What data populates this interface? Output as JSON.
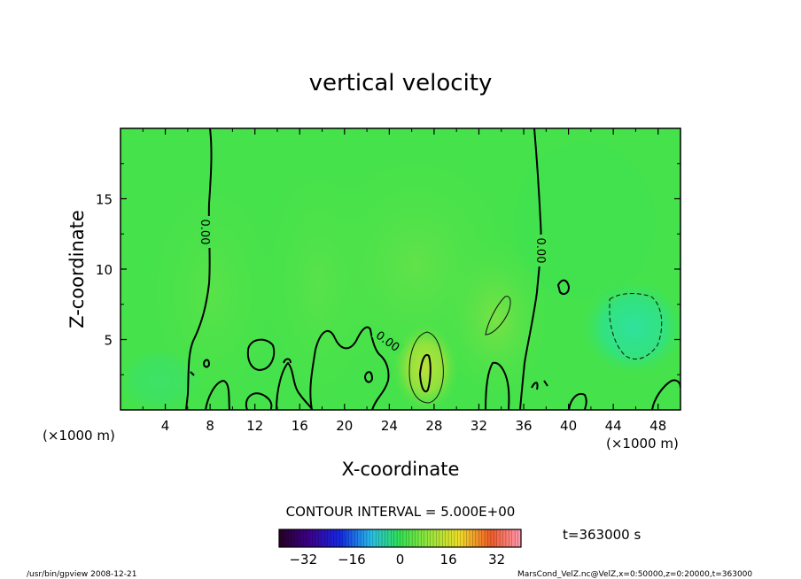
{
  "chart_data": {
    "type": "heatmap",
    "title": "vertical velocity",
    "xlabel": "X-coordinate",
    "ylabel": "Z-coordinate",
    "x_unit_left": "(×1000 m)",
    "x_unit_right": "(×1000 m)",
    "xlim": [
      0,
      50
    ],
    "ylim": [
      0,
      20
    ],
    "x_ticks": [
      "4",
      "8",
      "12",
      "16",
      "20",
      "24",
      "28",
      "32",
      "36",
      "40",
      "44",
      "48"
    ],
    "y_ticks": [
      "5",
      "10",
      "15"
    ],
    "contour_interval_text": "CONTOUR INTERVAL = 5.000E+00",
    "contour_labels": [
      "0.00",
      "0.00",
      "0.00"
    ],
    "colorbar": {
      "min": -40,
      "max": 40,
      "ticks": [
        "−32",
        "−16",
        "0",
        "16",
        "32"
      ]
    },
    "time_label": "t=363000 s",
    "features": [
      {
        "kind": "max",
        "x": 27,
        "z": 3,
        "value": 12
      },
      {
        "kind": "max",
        "x": 33.5,
        "z": 6,
        "value": 6
      },
      {
        "kind": "min",
        "x": 46,
        "z": 5.5,
        "value": -6
      }
    ]
  },
  "footer": {
    "left": "/usr/bin/gpview  2008-12-21",
    "right": "MarsCond_VelZ.nc@VelZ,x=0:50000,z=0:20000,t=363000"
  },
  "colors": {
    "background_field": "#44e24a",
    "frame": "#000000"
  }
}
